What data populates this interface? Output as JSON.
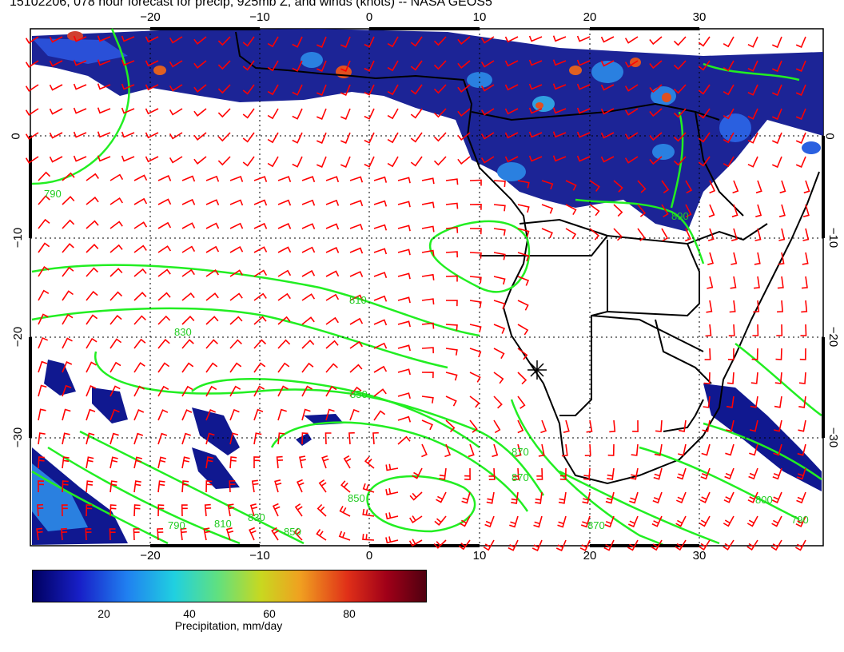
{
  "header": {
    "title": "15102206, 078 hour forecast for precip, 925mb Z, and winds (knots) -- NASA GEOS5"
  },
  "map": {
    "lon_ticks_top": [
      "−20",
      "−10",
      "0",
      "10",
      "20",
      "30"
    ],
    "lon_ticks_bottom": [
      "−20",
      "−10",
      "0",
      "10",
      "20",
      "30"
    ],
    "lat_ticks_left": [
      "0",
      "−10",
      "−20",
      "−30"
    ],
    "lat_ticks_right": [
      "0",
      "−10",
      "−20",
      "−30"
    ],
    "contour_labels": [
      "790",
      "810",
      "830",
      "850",
      "870",
      "870",
      "850",
      "790",
      "810",
      "830",
      "850",
      "870",
      "890",
      "790",
      "800"
    ],
    "colors": {
      "contour": "#22ee22",
      "wind_barb": "#ff0000",
      "coast": "#000000",
      "grid": "#000000",
      "precip_light": "#101890",
      "precip_mid": "#2a80e0",
      "precip_high": "#e05020"
    }
  },
  "colorbar": {
    "ticks": [
      "20",
      "40",
      "60",
      "80"
    ],
    "title": "Precipitation, mm/day",
    "range": [
      0,
      100
    ]
  }
}
